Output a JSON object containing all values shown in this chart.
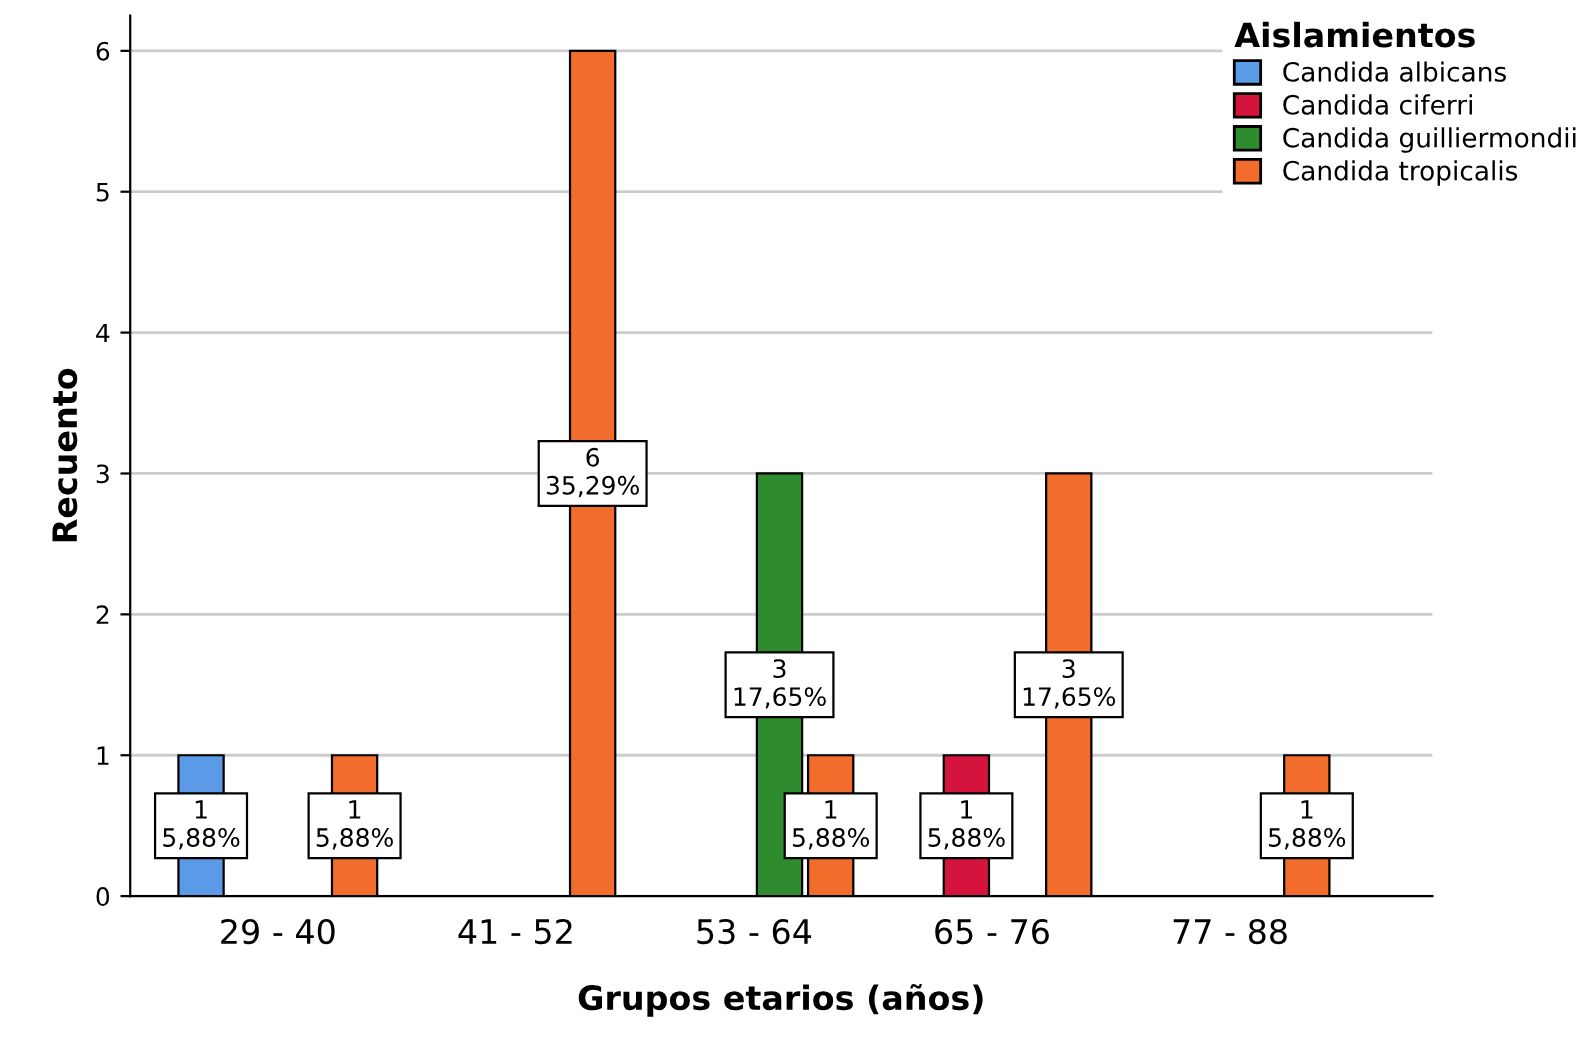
{
  "chart_data": {
    "type": "bar",
    "xlabel": "Grupos etarios (años)",
    "ylabel": "Recuento",
    "legend_title": "Aislamientos",
    "categories": [
      "29 - 40",
      "41 - 52",
      "53 - 64",
      "65 - 76",
      "77 - 88"
    ],
    "series": [
      {
        "name": "Candida albicans",
        "color": "#5b9ae6",
        "values": [
          1,
          null,
          null,
          null,
          null
        ],
        "value_labels": [
          "1\n5,88%",
          null,
          null,
          null,
          null
        ]
      },
      {
        "name": "Candida ciferri",
        "color": "#d4143c",
        "values": [
          null,
          null,
          null,
          1,
          null
        ],
        "value_labels": [
          null,
          null,
          null,
          "1\n5,88%",
          null
        ]
      },
      {
        "name": "Candida guilliermondii",
        "color": "#2e8b2e",
        "values": [
          null,
          null,
          3,
          null,
          null
        ],
        "value_labels": [
          null,
          null,
          "3\n17,65%",
          null,
          null
        ]
      },
      {
        "name": "Candida tropicalis",
        "color": "#f26c2c",
        "values": [
          1,
          6,
          1,
          3,
          1
        ],
        "value_labels": [
          "1\n5,88%",
          "6\n35,29%",
          "1\n5,88%",
          "3\n17,65%",
          "1\n5,88%"
        ]
      }
    ],
    "ylim": [
      0,
      6.25
    ],
    "yticks": [
      0,
      1,
      2,
      3,
      4,
      5,
      6
    ],
    "grid": "y",
    "legend": "top right"
  }
}
